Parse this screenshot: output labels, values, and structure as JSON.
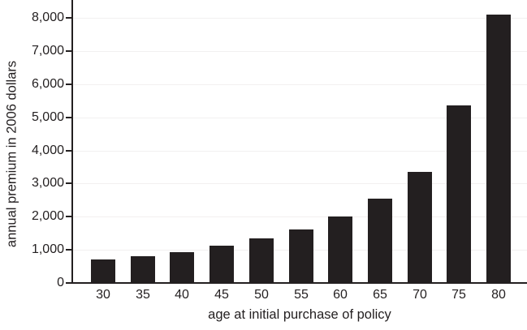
{
  "chart_data": {
    "type": "bar",
    "title": "",
    "xlabel": "age at initial purchase of policy",
    "ylabel": "annual premium in 2006 dollars",
    "categories": [
      "30",
      "35",
      "40",
      "45",
      "50",
      "55",
      "60",
      "65",
      "70",
      "75",
      "80"
    ],
    "values": [
      700,
      810,
      930,
      1130,
      1350,
      1620,
      2000,
      2550,
      3360,
      5360,
      8110
    ],
    "ylim": [
      0,
      8000
    ],
    "ytick_step": 1000,
    "ytick_labels": [
      "0",
      "1,000",
      "2,000",
      "3,000",
      "4,000",
      "5,000",
      "6,000",
      "7,000",
      "8,000"
    ],
    "grid": true,
    "legend": "none",
    "colors": {
      "bar": "#231f20",
      "axis": "#231f20",
      "grid": "#f2f0f0",
      "text": "#231f20",
      "background": "#ffffff"
    }
  }
}
